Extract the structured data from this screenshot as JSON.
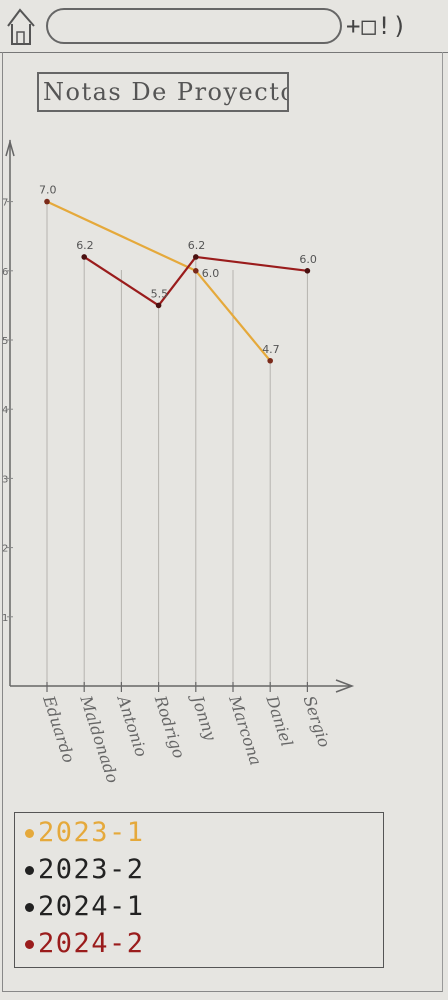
{
  "toolbar": {
    "actions_label": "+□!)"
  },
  "chart_data": {
    "type": "line",
    "title": "Notas De Proyectos",
    "categories": [
      "Eduardo",
      "Maldonado",
      "Antonio",
      "Rodrigo",
      "Jonny",
      "Marcona",
      "Daniel",
      "Sergio"
    ],
    "y_ticks": [
      "1",
      "2",
      "3",
      "4",
      "5",
      "6",
      "7"
    ],
    "ylim": [
      0,
      7.3
    ],
    "series": [
      {
        "name": "2023-1",
        "color": "#e5a93b",
        "points": [
          [
            0,
            7.0
          ],
          [
            4,
            6.0
          ],
          [
            6,
            4.7
          ]
        ],
        "labels": [
          "7.0",
          "6.0",
          "4.7"
        ]
      },
      {
        "name": "2023-2",
        "color": "#222222",
        "points": [],
        "labels": []
      },
      {
        "name": "2024-1",
        "color": "#222222",
        "points": [],
        "labels": []
      },
      {
        "name": "2024-2",
        "color": "#9a1c1c",
        "points": [
          [
            1,
            6.2
          ],
          [
            3,
            5.5
          ],
          [
            4,
            6.2
          ],
          [
            7,
            6.0
          ]
        ],
        "labels": [
          "6.2",
          "5.5",
          "6.2",
          "6.0"
        ]
      }
    ]
  }
}
